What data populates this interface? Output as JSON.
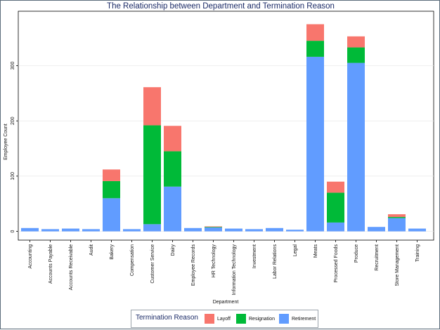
{
  "title": "The Relationship between Department and Termination Reason",
  "chart_data": {
    "type": "bar",
    "stacked": true,
    "title": "The Relationship between Department and Termination Reason",
    "xlabel": "Department",
    "ylabel": "Employee Count",
    "ylim": [
      -15,
      380
    ],
    "yticks": [
      0,
      100,
      200,
      300
    ],
    "grid": true,
    "legend_position": "bottom",
    "legend_title": "Termination Reason",
    "categories": [
      "Accounting",
      "Accounts Payable",
      "Accounts Receivable",
      "Audit",
      "Bakery",
      "Compensation",
      "Customer Service",
      "Dairy",
      "Employee Records",
      "HR Technology",
      "Information Technology",
      "Investment",
      "Labor Relations",
      "Legal",
      "Meats",
      "Processed Foods",
      "Produce",
      "Recruitment",
      "Store Management",
      "Training"
    ],
    "series": [
      {
        "name": "Retirement",
        "color": "#619cff",
        "values": [
          6,
          4,
          5,
          4,
          60,
          4,
          13,
          81,
          6,
          7,
          5,
          4,
          6,
          3,
          316,
          16,
          305,
          8,
          24,
          5
        ]
      },
      {
        "name": "Resignation",
        "color": "#00ba38",
        "values": [
          0,
          0,
          0,
          0,
          31,
          0,
          179,
          64,
          0,
          1,
          0,
          0,
          0,
          0,
          29,
          54,
          28,
          0,
          2,
          0
        ]
      },
      {
        "name": "Layoff",
        "color": "#f8766d",
        "values": [
          0,
          0,
          0,
          0,
          21,
          0,
          69,
          46,
          0,
          1,
          0,
          0,
          0,
          0,
          30,
          20,
          20,
          0,
          5,
          0
        ]
      }
    ]
  },
  "legend": {
    "title": "Termination Reason",
    "items": [
      {
        "label": "Layoff",
        "color": "#f8766d"
      },
      {
        "label": "Resignation",
        "color": "#00ba38"
      },
      {
        "label": "Retirement",
        "color": "#619cff"
      }
    ]
  }
}
